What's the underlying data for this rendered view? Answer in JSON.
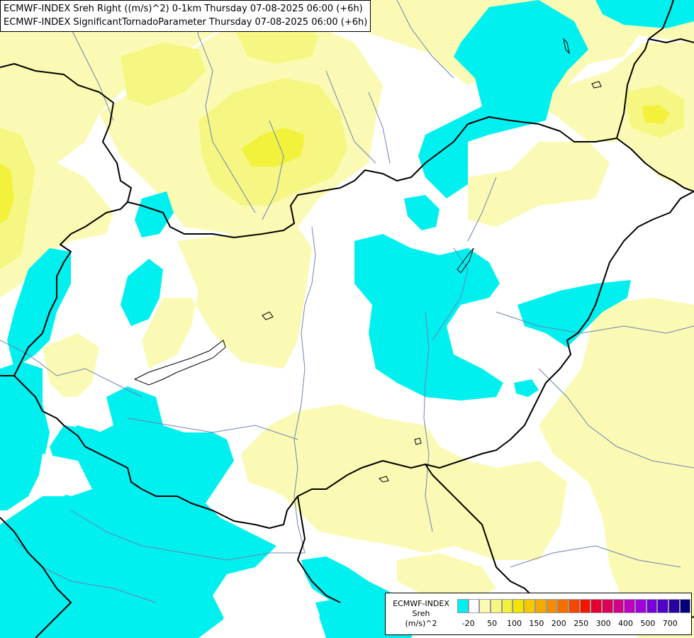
{
  "title": {
    "line1": "ECMWF-INDEX Sreh Right ((m/s)^2) 0-1km Thursday 07-08-2025 06:00 (+6h)",
    "line2": "ECMWF-INDEX SignificantTornadoParameter Thursday 07-08-2025 06:00 (+6h)"
  },
  "colors": {
    "background_white": "#ffffff",
    "pale_yellow": "#fafab4",
    "light_yellow": "#f6f682",
    "yellow": "#f2f23c",
    "cyan": "#00f0f0",
    "border_line": "#000000",
    "river_line": "#6e82b4"
  },
  "legend": {
    "title_line1": "ECMWF-INDEX",
    "title_line2": "Sreh",
    "title_line3": "(m/s)^2",
    "swatch_colors": [
      "#00f0f0",
      "#ffffff",
      "#fafab4",
      "#f6f682",
      "#f2f23c",
      "#f0e600",
      "#f5c800",
      "#f5aa00",
      "#f58c00",
      "#f56e00",
      "#f54600",
      "#f51400",
      "#e60032",
      "#dc005a",
      "#d2008c",
      "#be00be",
      "#a000dc",
      "#7800dc",
      "#5000c8",
      "#2800a0",
      "#000078"
    ],
    "labels": [
      "-20",
      "50",
      "100",
      "150",
      "200",
      "250",
      "300",
      "400",
      "500",
      "700"
    ]
  }
}
